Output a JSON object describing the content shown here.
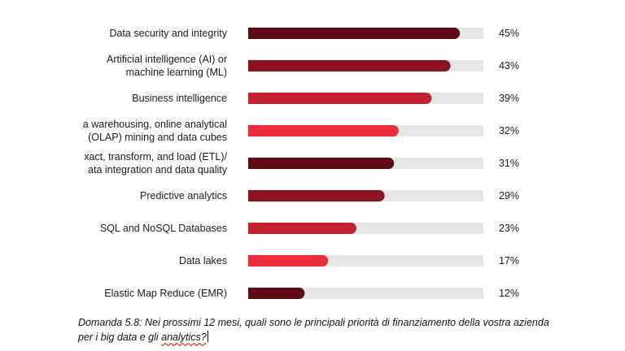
{
  "chart_data": {
    "type": "bar",
    "orientation": "horizontal",
    "categories": [
      "Data security and integrity",
      "Artificial intelligence (AI) or\nmachine learning (ML)",
      "Business intelligence",
      "a warehousing, online analytical\n(OLAP) mining and data cubes",
      "xact, transform, and load (ETL)/\nata integration and data quality",
      "Predictive analytics",
      "SQL and NoSQL Databases",
      "Data lakes",
      "Elastic Map Reduce (EMR)"
    ],
    "values": [
      45,
      43,
      39,
      32,
      31,
      29,
      23,
      17,
      12
    ],
    "value_labels": [
      "45%",
      "43%",
      "39%",
      "32%",
      "31%",
      "29%",
      "23%",
      "17%",
      "12%"
    ],
    "xlim": [
      0,
      50
    ],
    "grid": false,
    "colors": [
      "#5e0a12",
      "#8c141e",
      "#c6212f",
      "#ee2c3c",
      "#5e0a12",
      "#8c141e",
      "#c6212f",
      "#ee2c3c",
      "#5e0a12"
    ],
    "track_color": "#e6e6e6"
  },
  "caption": {
    "line1": "Domanda 5.8: Nei prossimi 12 mesi, quali sono le principali priorità di finanziamento della vostra azienda",
    "line2_prefix": "per i big data e gli ",
    "line2_underlined": "analytics?"
  }
}
